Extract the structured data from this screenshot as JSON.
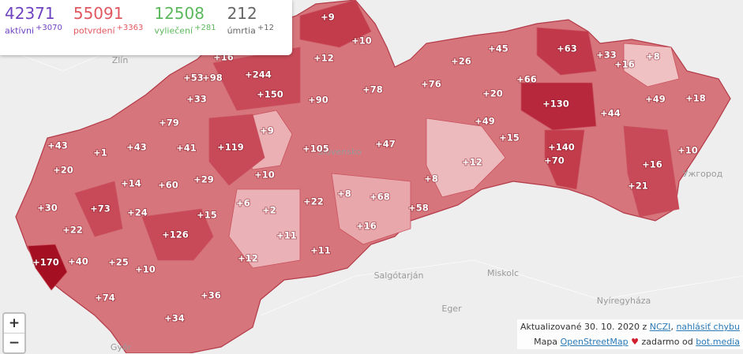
{
  "stats": [
    {
      "value": "42371",
      "label": "aktívni",
      "change": "+3070"
    },
    {
      "value": "55091",
      "label": "potvrdení",
      "change": "+3363"
    },
    {
      "value": "12508",
      "label": "vyliečení",
      "change": "+281"
    },
    {
      "value": "212",
      "label": "úmrtia",
      "change": "+12"
    }
  ],
  "district_labels": [
    "+9",
    "+10",
    "+12",
    "+16",
    "+53",
    "+98",
    "+244",
    "+150",
    "+90",
    "+78",
    "+76",
    "+26",
    "+45",
    "+63",
    "+33",
    "+16",
    "+8",
    "+66",
    "+20",
    "+130",
    "+49",
    "+18",
    "+44",
    "+33",
    "+79",
    "+9",
    "+49",
    "+15",
    "+140",
    "+70",
    "+43",
    "+1",
    "+43",
    "+41",
    "+119",
    "+105",
    "+47",
    "+12",
    "+10",
    "+16",
    "+21",
    "+20",
    "+14",
    "+60",
    "+29",
    "+10",
    "+8",
    "+8",
    "+68",
    "+22",
    "+58",
    "+30",
    "+73",
    "+24",
    "+6",
    "+2",
    "+15",
    "+22",
    "+126",
    "+16",
    "+11",
    "+170",
    "+40",
    "+25",
    "+12",
    "+11",
    "+10",
    "+74",
    "+36",
    "+34"
  ],
  "background_places": [
    "Zlín",
    "Slovensko",
    "Salgótarján",
    "Miskolc",
    "Eger",
    "Nyíregyháza",
    "Győr",
    "Ужгород"
  ],
  "zoom": [
    "+",
    "−"
  ],
  "footer": {
    "updated": "Aktualizované 30. 10. 2020 z",
    "source": "NCZI",
    "sep": ",",
    "report": "nahlásiť chybu",
    "map": "Mapa",
    "osm": "OpenStreetMap",
    "free": "zadarmo od",
    "credit": "bot.media"
  }
}
